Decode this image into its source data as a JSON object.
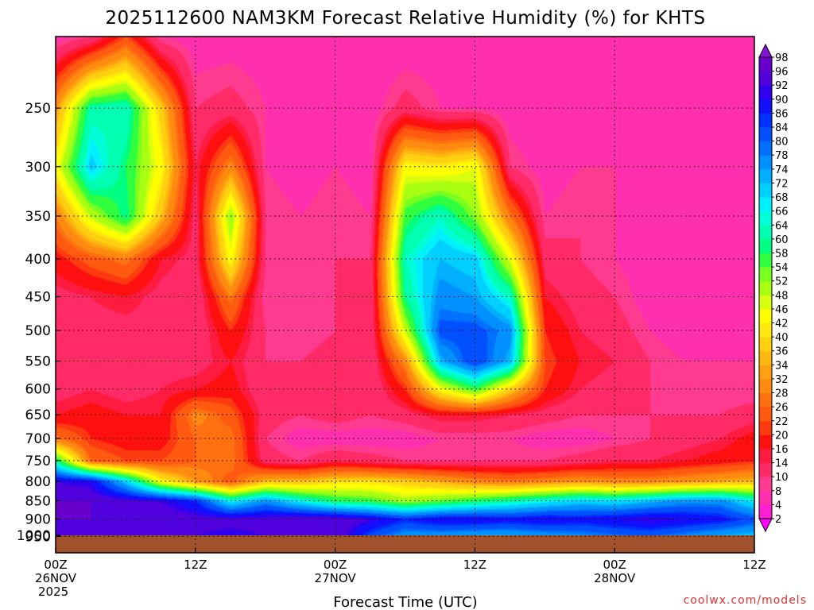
{
  "chart_data": {
    "type": "heatmap",
    "title": "2025112600 NAM3KM Forecast Relative Humidity (%) for KHTS",
    "xlabel": "Forecast Time (UTC)",
    "ylabel": "",
    "credit": "coolwx.com/models",
    "x_unit": "forecast hour",
    "xlim": [
      0,
      60
    ],
    "x_ticks": [
      {
        "hour": 0,
        "lines": [
          "00Z",
          "26NOV",
          "2025"
        ]
      },
      {
        "hour": 12,
        "lines": [
          "12Z"
        ]
      },
      {
        "hour": 24,
        "lines": [
          "00Z",
          "27NOV"
        ]
      },
      {
        "hour": 36,
        "lines": [
          "12Z"
        ]
      },
      {
        "hour": 48,
        "lines": [
          "00Z",
          "28NOV"
        ]
      },
      {
        "hour": 60,
        "lines": [
          "12Z"
        ]
      }
    ],
    "y_unit": "pressure level (hPa)",
    "ylim": [
      200,
      1000
    ],
    "y_scale": "log",
    "y_inverted": true,
    "y_ticks": [
      250,
      300,
      350,
      400,
      450,
      500,
      550,
      600,
      650,
      700,
      750,
      800,
      850,
      900,
      950,
      1000
    ],
    "grid": true,
    "below_ground_color": "#a0522d",
    "colorbar": {
      "levels": [
        2,
        4,
        8,
        10,
        14,
        16,
        20,
        22,
        26,
        28,
        32,
        34,
        36,
        40,
        42,
        46,
        48,
        52,
        54,
        58,
        60,
        64,
        66,
        68,
        72,
        74,
        78,
        80,
        84,
        86,
        90,
        92,
        96,
        98
      ],
      "colors": [
        "#ff00ff",
        "#ff1fd2",
        "#ff2fae",
        "#ff3b8f",
        "#ff2a66",
        "#ff1a40",
        "#ff1010",
        "#ff3a10",
        "#ff5a10",
        "#ff7010",
        "#ff8a10",
        "#ffa010",
        "#ffb810",
        "#ffd010",
        "#ffe810",
        "#ffff00",
        "#d8ff10",
        "#a8ff10",
        "#78ff20",
        "#30ff40",
        "#00ff80",
        "#00ffb0",
        "#00ffd8",
        "#00f0ff",
        "#00d0ff",
        "#00b0ff",
        "#0090ff",
        "#0070ff",
        "#0050ff",
        "#0030ff",
        "#1010ff",
        "#3000ee",
        "#5000dd",
        "#6a00cc",
        "#8a10dd"
      ]
    },
    "grid_hours": [
      0,
      3,
      6,
      9,
      12,
      15,
      18,
      21,
      24,
      27,
      30,
      33,
      36,
      39,
      42,
      45,
      48,
      51,
      54,
      57,
      60
    ],
    "grid_levels": [
      200,
      250,
      300,
      350,
      400,
      450,
      500,
      550,
      600,
      650,
      700,
      750,
      800,
      850,
      900,
      950,
      975
    ],
    "rh": [
      [
        6,
        10,
        22,
        8,
        6,
        6,
        6,
        8,
        6,
        5,
        5,
        6,
        5,
        4,
        5,
        6,
        6,
        5,
        5,
        5,
        4
      ],
      [
        32,
        62,
        64,
        38,
        10,
        12,
        8,
        6,
        6,
        6,
        12,
        8,
        8,
        6,
        6,
        6,
        6,
        5,
        5,
        5,
        5
      ],
      [
        44,
        70,
        58,
        44,
        14,
        30,
        8,
        6,
        8,
        6,
        44,
        42,
        46,
        10,
        6,
        8,
        8,
        6,
        6,
        6,
        6
      ],
      [
        28,
        48,
        60,
        36,
        12,
        52,
        10,
        8,
        10,
        8,
        56,
        64,
        52,
        28,
        8,
        10,
        8,
        6,
        6,
        6,
        5
      ],
      [
        18,
        24,
        28,
        16,
        12,
        44,
        10,
        8,
        10,
        10,
        64,
        72,
        70,
        46,
        12,
        10,
        8,
        6,
        6,
        6,
        6
      ],
      [
        12,
        14,
        16,
        12,
        10,
        28,
        8,
        8,
        10,
        10,
        60,
        76,
        74,
        64,
        16,
        12,
        10,
        6,
        6,
        6,
        6
      ],
      [
        10,
        12,
        12,
        12,
        10,
        20,
        10,
        8,
        10,
        10,
        48,
        82,
        82,
        76,
        20,
        14,
        12,
        8,
        6,
        6,
        6
      ],
      [
        10,
        12,
        10,
        12,
        12,
        16,
        10,
        10,
        12,
        10,
        30,
        72,
        84,
        72,
        22,
        16,
        14,
        10,
        8,
        8,
        8
      ],
      [
        12,
        14,
        12,
        14,
        16,
        18,
        10,
        10,
        12,
        10,
        20,
        44,
        56,
        38,
        20,
        14,
        12,
        10,
        8,
        8,
        8
      ],
      [
        16,
        18,
        16,
        16,
        30,
        24,
        12,
        10,
        12,
        10,
        12,
        16,
        16,
        14,
        12,
        10,
        10,
        10,
        10,
        10,
        12
      ],
      [
        28,
        20,
        18,
        18,
        26,
        28,
        10,
        6,
        6,
        6,
        6,
        8,
        8,
        8,
        6,
        6,
        8,
        10,
        12,
        14,
        18
      ],
      [
        60,
        26,
        22,
        22,
        26,
        28,
        12,
        10,
        14,
        12,
        10,
        10,
        10,
        10,
        10,
        12,
        14,
        14,
        16,
        18,
        20
      ],
      [
        92,
        90,
        70,
        44,
        32,
        24,
        36,
        36,
        40,
        40,
        38,
        34,
        30,
        28,
        30,
        32,
        30,
        30,
        32,
        34,
        36
      ],
      [
        96,
        96,
        94,
        92,
        86,
        66,
        76,
        66,
        58,
        56,
        50,
        54,
        58,
        62,
        66,
        70,
        68,
        72,
        76,
        76,
        66
      ],
      [
        96,
        96,
        96,
        96,
        94,
        94,
        94,
        96,
        96,
        92,
        86,
        90,
        90,
        88,
        90,
        88,
        90,
        92,
        90,
        88,
        82
      ],
      [
        94,
        94,
        94,
        94,
        92,
        90,
        92,
        94,
        96,
        82,
        74,
        74,
        72,
        72,
        74,
        76,
        78,
        80,
        76,
        72,
        70
      ],
      [
        92,
        92,
        92,
        92,
        90,
        70,
        72,
        74,
        74,
        72,
        70,
        70,
        68,
        68,
        66,
        62,
        60,
        60,
        62,
        64,
        64
      ]
    ]
  }
}
